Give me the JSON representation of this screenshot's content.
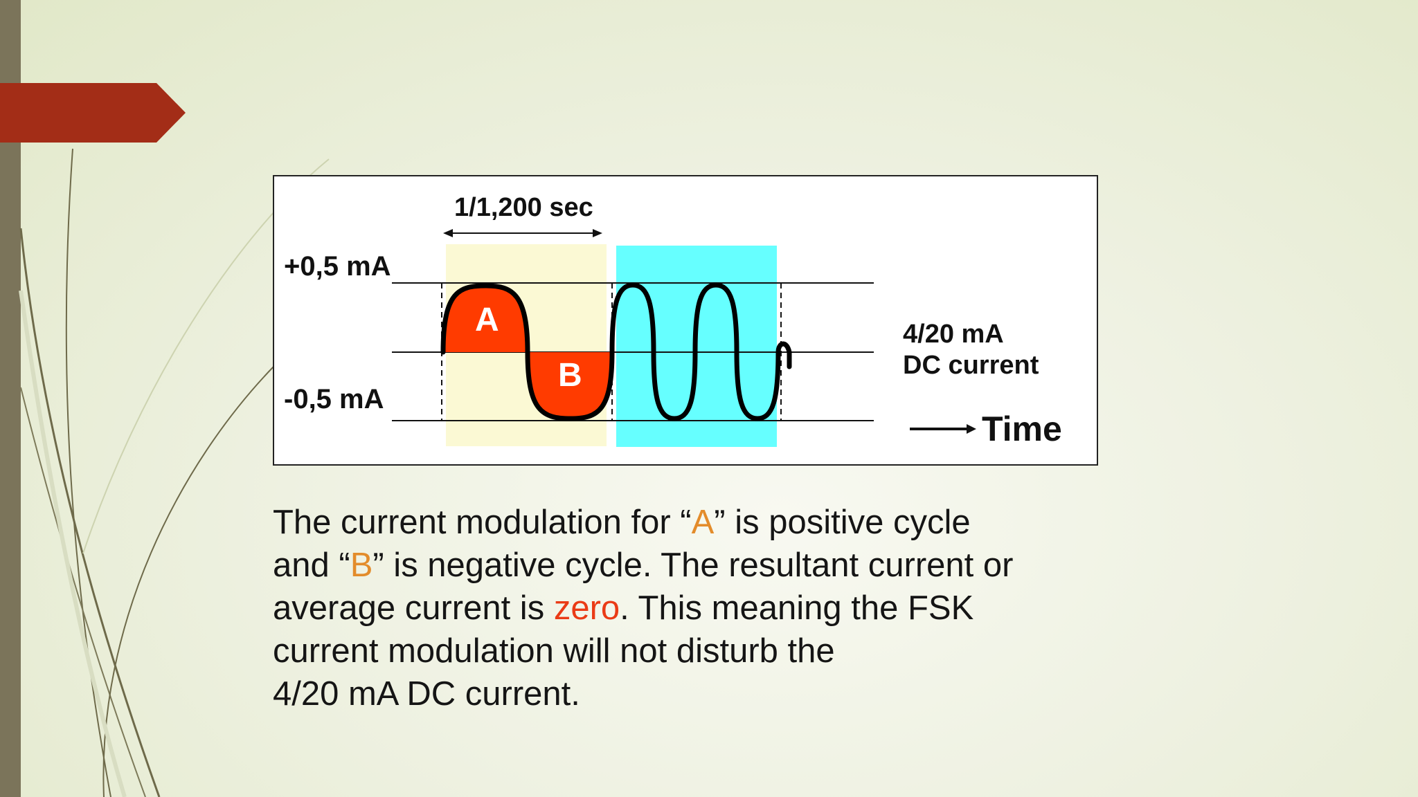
{
  "diagram": {
    "period_label": "1/1,200 sec",
    "positive_label": "+0,5 mA",
    "negative_label": "-0,5 mA",
    "dc_label_line1": "4/20 mA",
    "dc_label_line2": "DC current",
    "time_label": "Time",
    "cycle_a_label": "A",
    "cycle_b_label": "B",
    "colors": {
      "low_frequency_band": "#fbf9d4",
      "high_frequency_band": "#66ffff",
      "cycle_fill": "#ff3b00",
      "tag": "#a32d17"
    }
  },
  "body": {
    "t1": "The current modulation for “",
    "a": "A",
    "t2": "” is positive cycle",
    "t3": "and “",
    "b": "B",
    "t4": "” is negative cycle. The resultant current or",
    "t5": "average current is ",
    "zero": "zero",
    "t6": ". This meaning the FSK",
    "t7": "current modulation will not disturb the",
    "t8": "4/20 mA DC current."
  }
}
